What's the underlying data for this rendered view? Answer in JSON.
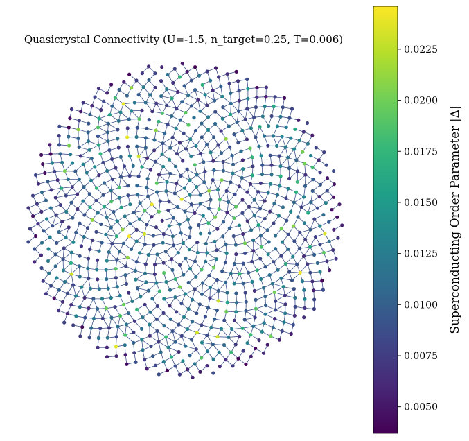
{
  "chart_data": {
    "type": "scatter",
    "title": "Quasicrystal Connectivity (U=-1.5, n_target=0.25, T=0.006)",
    "description_of_marks": "Penrose-like quasicrystal graph: nodes colored by superconducting order parameter, edges connecting neighbors",
    "colorbar": {
      "label": "Superconducting Order Parameter |Δ|",
      "colormap": "viridis",
      "vmin": 0.0037,
      "vmax": 0.0246,
      "ticks": [
        0.005,
        0.0075,
        0.01,
        0.0125,
        0.015,
        0.0175,
        0.02,
        0.0225
      ],
      "tick_labels": [
        "0.0050",
        "0.0075",
        "0.0100",
        "0.0125",
        "0.0150",
        "0.0175",
        "0.0200",
        "0.0225"
      ]
    },
    "axes_visible": false,
    "grid": false,
    "edge_color": "#3b518b"
  }
}
